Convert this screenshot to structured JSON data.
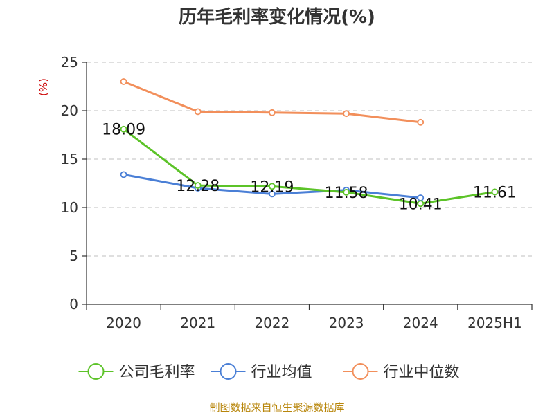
{
  "chart_data": {
    "type": "line",
    "title": "历年毛利率变化情况(%)",
    "y_unit": "(%)",
    "categories": [
      "2020",
      "2021",
      "2022",
      "2023",
      "2024",
      "2025H1"
    ],
    "ylim": [
      0,
      25
    ],
    "yticks": [
      "0",
      "5",
      "10",
      "15",
      "20",
      "25"
    ],
    "grid": true,
    "legend_position": "bottom",
    "series": [
      {
        "name": "公司毛利率",
        "color": "#5cc328",
        "values": [
          18.09,
          12.28,
          12.19,
          11.58,
          10.41,
          11.61
        ],
        "labels": [
          "18.09",
          "12.28",
          "12.19",
          "11.58",
          "10.41",
          "11.61"
        ]
      },
      {
        "name": "行业均值",
        "color": "#4a7fd6",
        "values": [
          13.4,
          12.0,
          11.4,
          11.8,
          11.0,
          null
        ],
        "labels": []
      },
      {
        "name": "行业中位数",
        "color": "#f28f5b",
        "values": [
          23.0,
          19.9,
          19.8,
          19.7,
          18.8,
          null
        ],
        "labels": []
      }
    ]
  },
  "source": "制图数据来自恒生聚源数据库"
}
